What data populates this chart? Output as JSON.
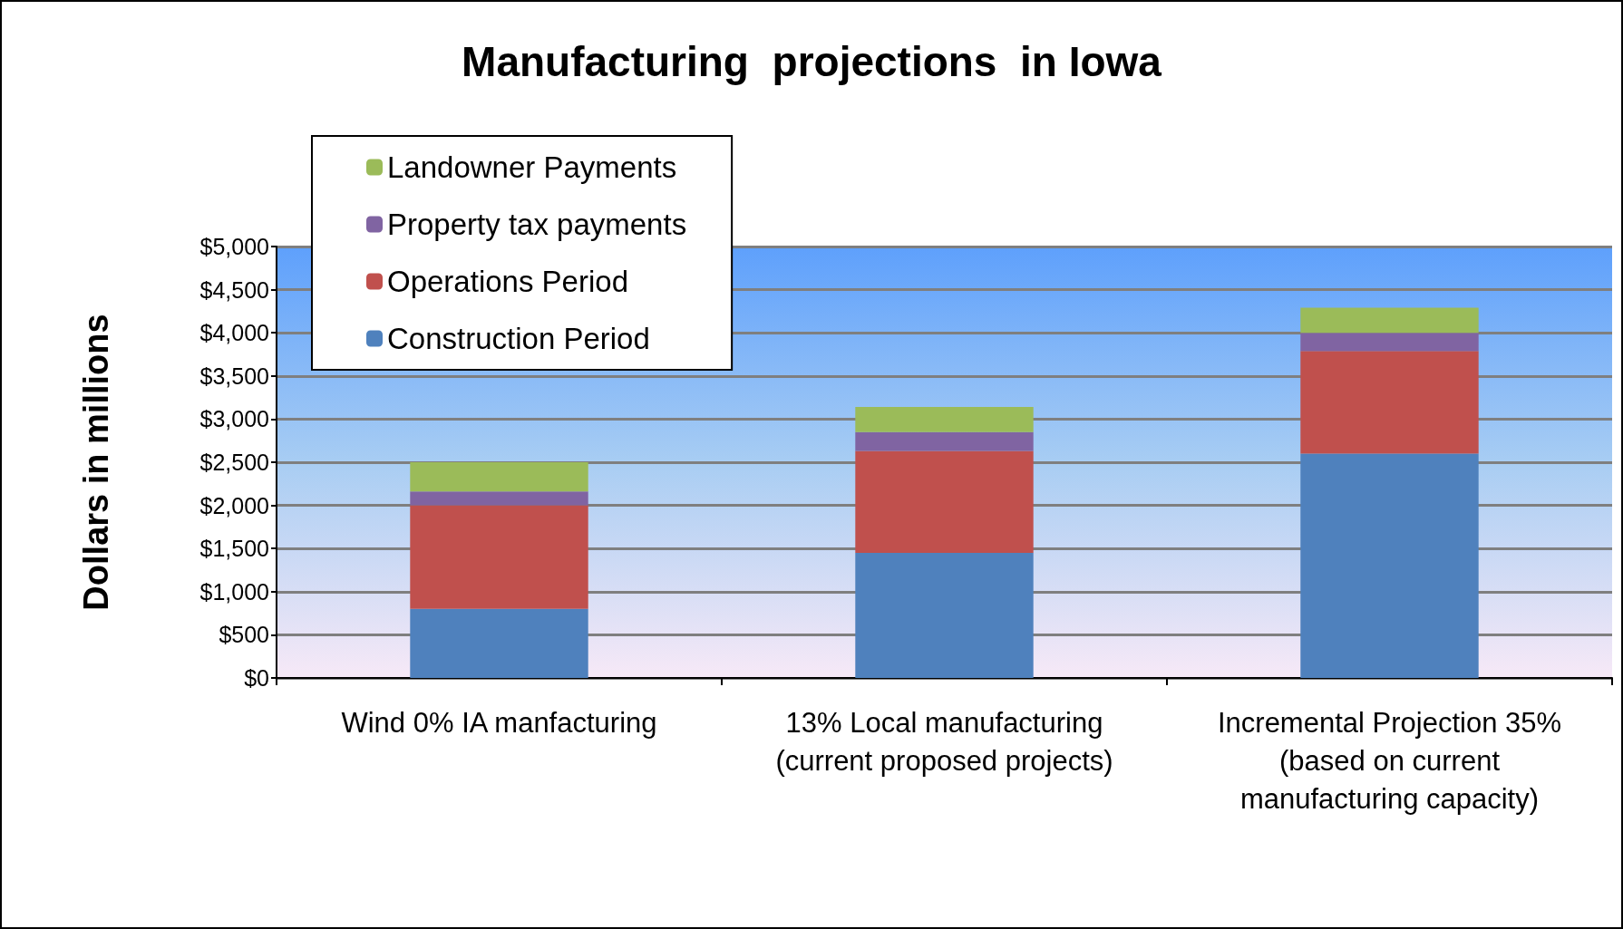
{
  "chart_data": {
    "type": "bar",
    "title": "Manufacturing  projections  in Iowa",
    "ylabel": "Dollars in millions",
    "stacked": true,
    "categories": [
      "Wind 0% IA manfacturing",
      "13% Local manufacturing\n(current proposed projects)",
      "Incremental Projection 35%\n(based on current\nmanufacturing capacity)"
    ],
    "series": [
      {
        "name": "Construction Period",
        "color": "#4f81bd",
        "values": [
          800,
          1450,
          2600
        ]
      },
      {
        "name": "Operations Period",
        "color": "#c0504d",
        "values": [
          1200,
          1180,
          1190
        ]
      },
      {
        "name": "Property tax payments",
        "color": "#8064a2",
        "values": [
          160,
          220,
          210
        ]
      },
      {
        "name": "Landowner Payments",
        "color": "#9bbb59",
        "values": [
          340,
          290,
          290
        ]
      }
    ],
    "ylim": [
      0,
      5000
    ],
    "yticks": [
      {
        "value": 0,
        "label": "$0"
      },
      {
        "value": 500,
        "label": "$500"
      },
      {
        "value": 1000,
        "label": "$1,000"
      },
      {
        "value": 1500,
        "label": "$1,500"
      },
      {
        "value": 2000,
        "label": "$2,000"
      },
      {
        "value": 2500,
        "label": "$2,500"
      },
      {
        "value": 3000,
        "label": "$3,000"
      },
      {
        "value": 3500,
        "label": "$3,500"
      },
      {
        "value": 4000,
        "label": "$4,000"
      },
      {
        "value": 4500,
        "label": "$4,500"
      },
      {
        "value": 5000,
        "label": "$5,000"
      }
    ],
    "grid": "y",
    "legend": "top left"
  }
}
